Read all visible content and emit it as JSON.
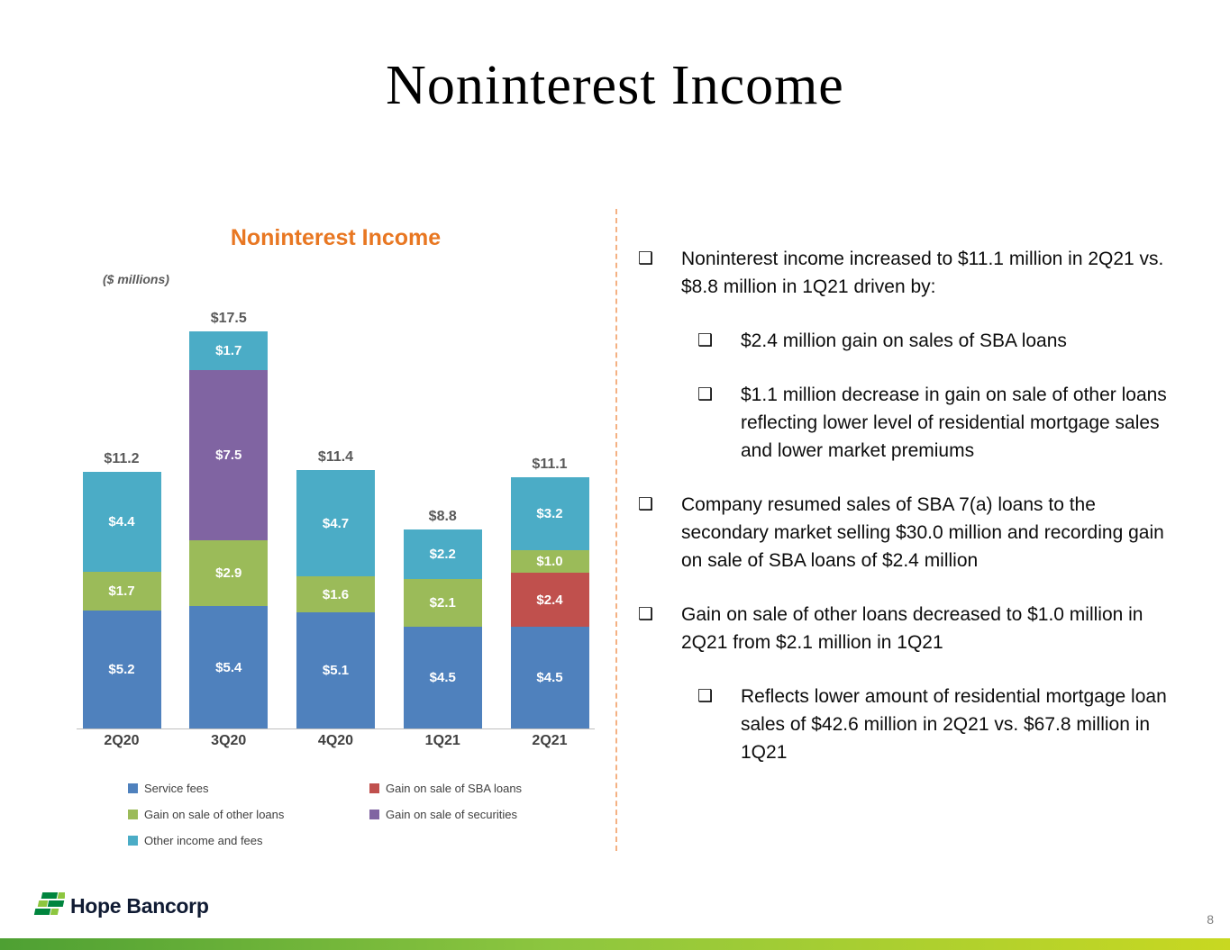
{
  "slide": {
    "title": "Noninterest Income",
    "footer_brand": "Hope Bancorp",
    "page_number": "8"
  },
  "chart_data": {
    "type": "bar",
    "stacked": true,
    "title": "Noninterest Income",
    "units_label": "($ millions)",
    "categories": [
      "2Q20",
      "3Q20",
      "4Q20",
      "1Q21",
      "2Q21"
    ],
    "series": [
      {
        "name": "Service fees",
        "color": "#4f81bd",
        "values": [
          5.2,
          5.4,
          5.1,
          4.5,
          4.5
        ]
      },
      {
        "name": "Gain on sale of SBA loans",
        "color": "#c0504d",
        "values": [
          0,
          0,
          0,
          0,
          2.4
        ]
      },
      {
        "name": "Gain on sale of other loans",
        "color": "#9bbb59",
        "values": [
          1.7,
          2.9,
          1.6,
          2.1,
          1.0
        ]
      },
      {
        "name": "Gain on sale of securities",
        "color": "#8064a2",
        "values": [
          0,
          7.5,
          0,
          0,
          0
        ]
      },
      {
        "name": "Other income and fees",
        "color": "#4bacc6",
        "values": [
          4.4,
          1.7,
          4.7,
          2.2,
          3.2
        ]
      }
    ],
    "totals": [
      "$11.2",
      "$17.5",
      "$11.4",
      "$8.8",
      "$11.1"
    ],
    "ylim": [
      0,
      18.5
    ],
    "grid": false,
    "legend_position": "bottom"
  },
  "bullets": {
    "glyph": "❑",
    "items": [
      {
        "level": 1,
        "text": "Noninterest income increased to $11.1 million in 2Q21 vs. $8.8 million in 1Q21 driven by:"
      },
      {
        "level": 2,
        "text": "$2.4 million gain on sales of SBA loans"
      },
      {
        "level": 2,
        "text": "$1.1 million decrease in gain on sale of other loans reflecting lower level of residential mortgage sales and lower market premiums"
      },
      {
        "level": 1,
        "text": "Company resumed sales of SBA 7(a) loans to the secondary market selling $30.0 million and recording gain on sale of SBA loans of $2.4 million"
      },
      {
        "level": 1,
        "text": "Gain on sale of other loans decreased to $1.0 million in 2Q21 from $2.1 million in 1Q21"
      },
      {
        "level": 2,
        "text": "Reflects lower amount of residential mortgage loan sales of $42.6 million in 2Q21 vs. $67.8 million in 1Q21"
      }
    ]
  }
}
